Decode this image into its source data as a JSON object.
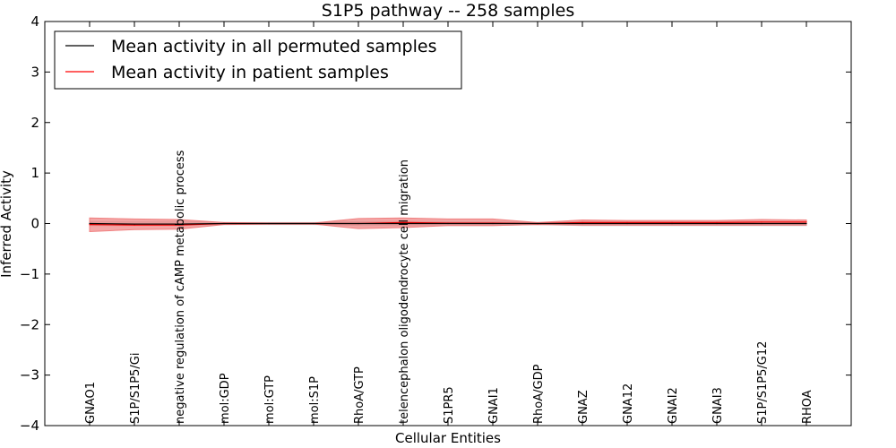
{
  "chart_data": {
    "type": "line",
    "title": "S1P5 pathway -- 258 samples",
    "xlabel": "Cellular Entities",
    "ylabel": "Inferred Activity",
    "ylim": [
      -4,
      4
    ],
    "yticks": [
      4,
      3,
      2,
      1,
      0,
      -1,
      -2,
      -3,
      -4
    ],
    "ytick_labels": [
      "4",
      "3",
      "2",
      "1",
      "0",
      "−1",
      "−2",
      "−3",
      "−4"
    ],
    "categories": [
      "GNAO1",
      "S1P/S1P5/Gi",
      "negative regulation of cAMP metabolic process",
      "mol:GDP",
      "mol:GTP",
      "mol:S1P",
      "RhoA/GTP",
      "telencephalon oligodendrocyte cell migration",
      "S1PR5",
      "GNAI1",
      "RhoA/GDP",
      "GNAZ",
      "GNA12",
      "GNAI2",
      "GNAI3",
      "S1P/S1P5/G12",
      "RHOA"
    ],
    "series": [
      {
        "name": "Mean activity in all permuted samples",
        "color": "#000000",
        "values": [
          0.0,
          -0.01,
          -0.01,
          0.0,
          0.0,
          0.0,
          0.0,
          0.0,
          0.0,
          0.0,
          0.0,
          0.0,
          0.0,
          0.0,
          0.0,
          0.0,
          0.0
        ],
        "band_lower": [
          -0.04,
          -0.04,
          -0.04,
          -0.02,
          -0.02,
          -0.02,
          -0.04,
          -0.04,
          -0.04,
          -0.04,
          -0.02,
          -0.04,
          -0.04,
          -0.04,
          -0.04,
          -0.04,
          -0.04
        ],
        "band_upper": [
          0.04,
          0.04,
          0.04,
          0.02,
          0.02,
          0.02,
          0.04,
          0.04,
          0.04,
          0.04,
          0.02,
          0.04,
          0.04,
          0.04,
          0.04,
          0.04,
          0.04
        ],
        "band_color": "#c8c8c8"
      },
      {
        "name": "Mean activity in patient samples",
        "color": "#ff0000",
        "values": [
          -0.02,
          -0.03,
          -0.03,
          0.0,
          0.0,
          0.0,
          0.0,
          0.02,
          0.01,
          0.01,
          0.0,
          0.02,
          0.02,
          0.02,
          0.02,
          0.03,
          0.03
        ],
        "band_lower": [
          -0.16,
          -0.12,
          -0.11,
          -0.02,
          -0.01,
          -0.01,
          -0.1,
          -0.08,
          -0.04,
          -0.04,
          -0.02,
          -0.03,
          -0.03,
          -0.03,
          -0.03,
          -0.03,
          -0.03
        ],
        "band_upper": [
          0.11,
          0.09,
          0.08,
          0.02,
          0.01,
          0.01,
          0.1,
          0.11,
          0.09,
          0.09,
          0.02,
          0.07,
          0.06,
          0.06,
          0.06,
          0.08,
          0.07
        ],
        "band_color": "#f08080"
      }
    ],
    "legend_position": "top-left",
    "grid": false
  }
}
